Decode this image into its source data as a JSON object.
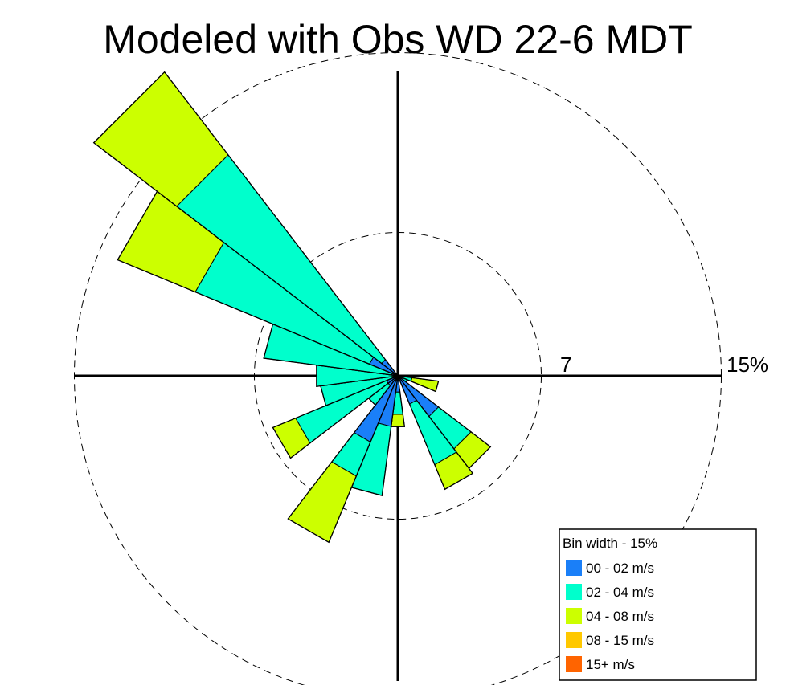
{
  "chart_data": {
    "type": "wind_rose",
    "title": "Modeled with Obs WD 22-6 MDT",
    "bin_width_degrees": 15,
    "rings": [
      {
        "value": 7,
        "label": "7"
      },
      {
        "value": 15,
        "label": "15%"
      }
    ],
    "speed_bins": [
      {
        "label": "00 - 02 m/s",
        "color": "#1a7ff8"
      },
      {
        "label": "02 - 04 m/s",
        "color": "#00ffcc"
      },
      {
        "label": "04 - 08 m/s",
        "color": "#ccff00"
      },
      {
        "label": "08 - 15 m/s",
        "color": "#ffc800"
      },
      {
        "label": "15+ m/s",
        "color": "#ff6400"
      }
    ],
    "sectors": [
      {
        "direction": 105,
        "values": [
          0.2,
          0.5,
          1.3,
          0,
          0
        ]
      },
      {
        "direction": 120,
        "values": [
          0.3,
          0.2,
          0,
          0,
          0
        ]
      },
      {
        "direction": 135,
        "values": [
          2.5,
          2.0,
          1.2,
          0,
          0
        ]
      },
      {
        "direction": 150,
        "values": [
          1.5,
          3.2,
          1.3,
          0,
          0
        ]
      },
      {
        "direction": 180,
        "values": [
          0.8,
          1.1,
          0.6,
          0,
          0
        ]
      },
      {
        "direction": 195,
        "values": [
          2.5,
          3.4,
          0,
          0,
          0
        ]
      },
      {
        "direction": 210,
        "values": [
          3.5,
          1.8,
          3.5,
          0,
          0
        ]
      },
      {
        "direction": 225,
        "values": [
          0.6,
          1.2,
          0,
          0,
          0
        ]
      },
      {
        "direction": 240,
        "values": [
          0.6,
          4.8,
          1.2,
          0,
          0
        ]
      },
      {
        "direction": 255,
        "values": [
          0.2,
          3.6,
          0,
          0,
          0
        ]
      },
      {
        "direction": 270,
        "values": [
          0.2,
          3.8,
          0,
          0,
          0
        ]
      },
      {
        "direction": 285,
        "values": [
          0.3,
          6.3,
          0,
          0,
          0
        ]
      },
      {
        "direction": 300,
        "values": [
          1.5,
          9.2,
          4.1,
          0,
          0
        ]
      },
      {
        "direction": 315,
        "values": [
          1.0,
          12.6,
          5.1,
          0,
          0
        ]
      }
    ]
  },
  "legend": {
    "title": "Bin width - 15%"
  }
}
